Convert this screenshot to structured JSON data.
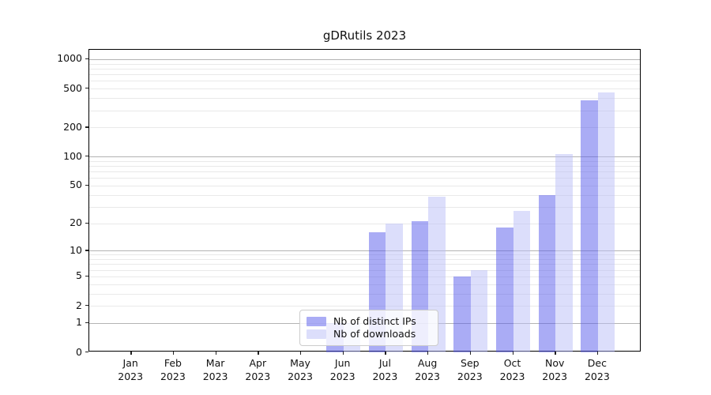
{
  "title": "gDRutils 2023",
  "chart_data": {
    "type": "bar",
    "title": "gDRutils 2023",
    "categories": [
      "Jan 2023",
      "Feb 2023",
      "Mar 2023",
      "Apr 2023",
      "May 2023",
      "Jun 2023",
      "Jul 2023",
      "Aug 2023",
      "Sep 2023",
      "Oct 2023",
      "Nov 2023",
      "Dec 2023"
    ],
    "series": [
      {
        "name": "Nb of distinct IPs",
        "color_hex": "#a7aaf5",
        "color_rgba": "rgba(85,90,235,0.5)",
        "values": [
          0,
          0,
          0,
          0,
          0,
          1,
          16,
          21,
          5,
          18,
          40,
          378
        ]
      },
      {
        "name": "Nb of downloads",
        "color_hex": "#dcdefb",
        "color_rgba": "rgba(185,190,247,0.5)",
        "values": [
          0,
          0,
          0,
          0,
          0,
          1,
          20,
          38,
          6,
          27,
          107,
          457
        ]
      }
    ],
    "y_scale": "log1p",
    "y_ticks": [
      0,
      1,
      2,
      5,
      10,
      20,
      50,
      100,
      200,
      500,
      1000
    ],
    "minor_gridlines": [
      2,
      3,
      4,
      5,
      6,
      7,
      8,
      9,
      20,
      30,
      40,
      50,
      60,
      70,
      80,
      90,
      200,
      300,
      400,
      500,
      600,
      700,
      800,
      900
    ],
    "major_gridlines": [
      1,
      10,
      100,
      1000
    ],
    "ylim": [
      0,
      1250
    ],
    "xlabel": "",
    "ylabel": "",
    "grid": true,
    "legend": {
      "labels": [
        "Nb of distinct IPs",
        "Nb of downloads"
      ],
      "position": "lower center"
    }
  },
  "colors": {
    "bar_dark": "#a7aaf5",
    "bar_light": "#dcdefb",
    "grid_major": "#b3b3b3",
    "grid_minor": "#e9e9e9",
    "spine": "#000000",
    "text": "#111111",
    "legend_border": "#cccccc"
  }
}
